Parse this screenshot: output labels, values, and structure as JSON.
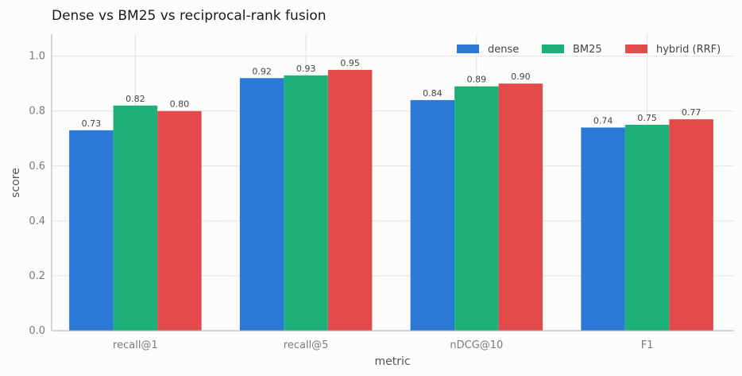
{
  "chart_data": {
    "type": "bar",
    "title": "Dense vs BM25 vs reciprocal-rank fusion",
    "xlabel": "metric",
    "ylabel": "score",
    "ylim": [
      0,
      1.08
    ],
    "yticks": [
      0.0,
      0.2,
      0.4,
      0.6,
      0.8,
      1.0
    ],
    "ytick_labels": [
      "0.0",
      "0.2",
      "0.4",
      "0.6",
      "0.8",
      "1.0"
    ],
    "categories": [
      "recall@1",
      "recall@5",
      "nDCG@10",
      "F1"
    ],
    "series": [
      {
        "name": "dense",
        "color": "#2b78d6",
        "values": [
          0.73,
          0.92,
          0.84,
          0.74
        ],
        "labels": [
          "0.73",
          "0.92",
          "0.84",
          "0.74"
        ]
      },
      {
        "name": "BM25",
        "color": "#1db07a",
        "values": [
          0.82,
          0.93,
          0.89,
          0.75
        ],
        "labels": [
          "0.82",
          "0.93",
          "0.89",
          "0.75"
        ]
      },
      {
        "name": "hybrid (RRF)",
        "color": "#e34a4a",
        "values": [
          0.8,
          0.95,
          0.9,
          0.77
        ],
        "labels": [
          "0.80",
          "0.95",
          "0.90",
          "0.77"
        ]
      }
    ],
    "grid": true,
    "legend_position": "top-right"
  }
}
